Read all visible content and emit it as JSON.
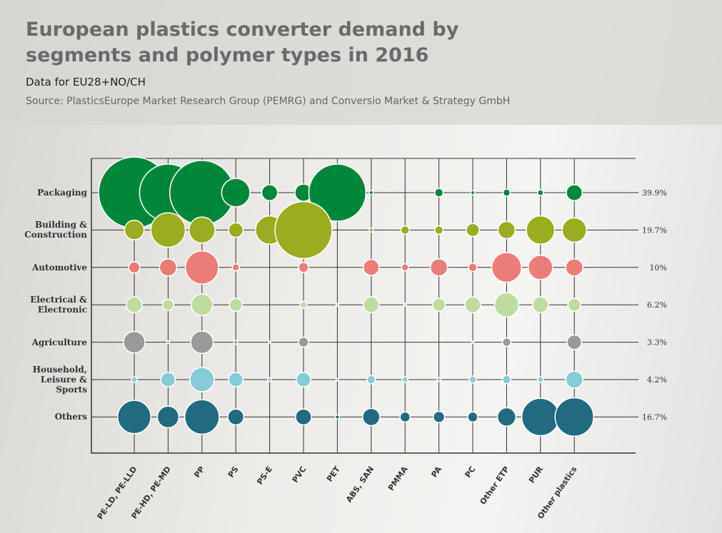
{
  "chart_data": {
    "type": "bubble-matrix",
    "title": "European plastics converter demand by segments and polymer types in 2016",
    "subtitle": "Data for EU28+NO/CH",
    "source": "Source: PlasticsEurope Market Research Group (PEMRG) and Conversio Market & Strategy GmbH",
    "categories": [
      "PE-LD, PE-LLD",
      "PE-HD, PE-MD",
      "PP",
      "PS",
      "PS-E",
      "PVC",
      "PET",
      "ABS, SAN",
      "PMMA",
      "PA",
      "PC",
      "Other ETP",
      "PUR",
      "Other plastics"
    ],
    "series": [
      {
        "name": "Packaging",
        "color": "#00873a",
        "share": 39.9,
        "share_label": "39.9%",
        "values": [
          12.0,
          7.7,
          9.8,
          1.9,
          0.6,
          0.7,
          7.7,
          0.04,
          0,
          0.17,
          0.04,
          0.12,
          0.08,
          0.6
        ]
      },
      {
        "name": "Building & Construction",
        "color": "#9aad1e",
        "share": 19.7,
        "share_label": "19.7%",
        "values": [
          0.9,
          2.8,
          1.6,
          0.5,
          1.9,
          7.7,
          0,
          0.04,
          0.17,
          0.17,
          0.4,
          0.7,
          1.9,
          1.4
        ]
      },
      {
        "name": "Automotive",
        "color": "#ec7c78",
        "share": 10,
        "share_label": "10%",
        "values": [
          0.3,
          0.7,
          2.6,
          0.12,
          0,
          0.24,
          0,
          0.6,
          0.12,
          0.7,
          0.17,
          2.1,
          1.4,
          0.7
        ]
      },
      {
        "name": "Electrical & Electronic",
        "color": "#bfdca0",
        "share": 6.2,
        "share_label": "6.2%",
        "values": [
          0.6,
          0.3,
          1.1,
          0.4,
          0,
          0.12,
          0.02,
          0.6,
          0.02,
          0.4,
          0.6,
          1.4,
          0.6,
          0.4
        ]
      },
      {
        "name": "Agriculture",
        "color": "#9a9a9a",
        "share": 3.3,
        "share_label": "3.3%",
        "values": [
          1.1,
          0.02,
          1.2,
          0.04,
          0.01,
          0.24,
          0,
          0,
          0,
          0,
          0.01,
          0.17,
          0,
          0.5
        ]
      },
      {
        "name": "Household, Leisure & Sports",
        "color": "#86ccd8",
        "share": 4.2,
        "share_label": "4.2%",
        "values": [
          0.08,
          0.5,
          1.4,
          0.5,
          0.04,
          0.5,
          0.02,
          0.17,
          0.08,
          0.04,
          0.12,
          0.17,
          0.08,
          0.7
        ]
      },
      {
        "name": "Others",
        "color": "#216a80",
        "share": 16.7,
        "share_label": "16.7%",
        "values": [
          2.6,
          1.1,
          2.8,
          0.6,
          0,
          0.6,
          0.04,
          0.7,
          0.24,
          0.3,
          0.24,
          0.8,
          3.3,
          3.5
        ]
      }
    ]
  }
}
